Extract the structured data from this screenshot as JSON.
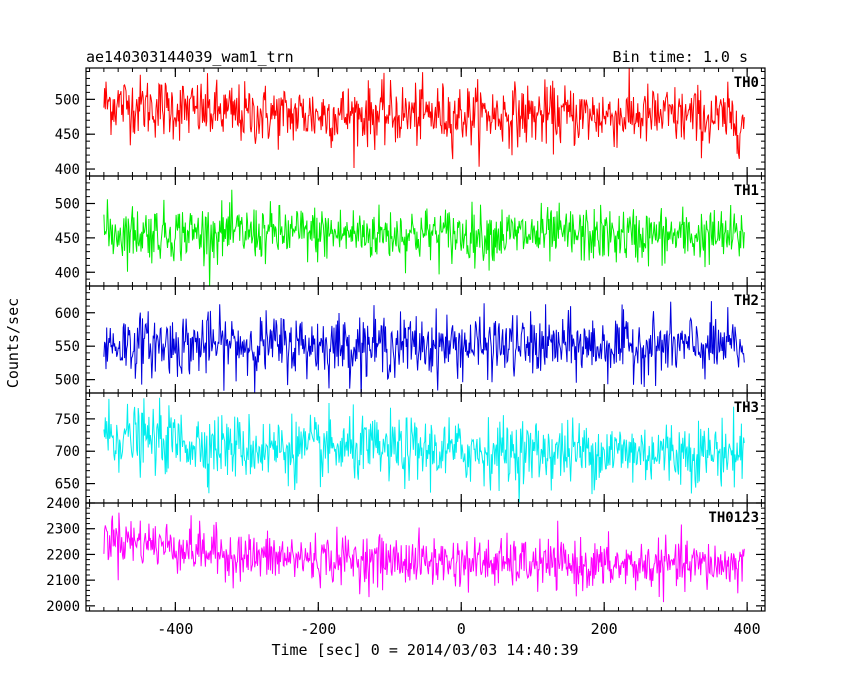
{
  "header": {
    "title": "ae140303144039_wam1_trn",
    "bin_time": "Bin time: 1.0 s"
  },
  "chart_data": {
    "type": "line",
    "xlabel": "Time [sec] 0 = 2014/03/03 14:40:39",
    "ylabel": "Counts/sec",
    "xlim": [
      -525,
      425
    ],
    "x_ticks": [
      -400,
      -200,
      0,
      200,
      400
    ],
    "x_minor_step": 20,
    "data_x_range": [
      -500,
      396
    ],
    "bin_time_s": 1.0,
    "series": [
      {
        "name": "TH0",
        "color": "#ff0000",
        "ylim": [
          390,
          545
        ],
        "y_ticks": [
          400,
          450,
          500
        ],
        "y_minor_step": 10,
        "trend": [
          [
            -500,
            495
          ],
          [
            -300,
            478
          ],
          [
            0,
            478
          ],
          [
            300,
            476
          ],
          [
            396,
            470
          ]
        ],
        "noise_sd": 22
      },
      {
        "name": "TH1",
        "color": "#00ee00",
        "ylim": [
          380,
          540
        ],
        "y_ticks": [
          400,
          450,
          500
        ],
        "y_minor_step": 10,
        "trend": [
          [
            -500,
            458
          ],
          [
            0,
            455
          ],
          [
            396,
            452
          ]
        ],
        "noise_sd": 20
      },
      {
        "name": "TH2",
        "color": "#0000dd",
        "ylim": [
          480,
          640
        ],
        "y_ticks": [
          500,
          550,
          600
        ],
        "y_minor_step": 10,
        "trend": [
          [
            -500,
            553
          ],
          [
            0,
            551
          ],
          [
            396,
            549
          ]
        ],
        "noise_sd": 23
      },
      {
        "name": "TH3",
        "color": "#00eeee",
        "ylim": [
          620,
          790
        ],
        "y_ticks": [
          650,
          700,
          750
        ],
        "y_minor_step": 10,
        "trend": [
          [
            -500,
            725
          ],
          [
            -300,
            705
          ],
          [
            0,
            700
          ],
          [
            396,
            698
          ]
        ],
        "noise_sd": 25
      },
      {
        "name": "TH0123",
        "color": "#ff00ff",
        "ylim": [
          1980,
          2400
        ],
        "y_ticks": [
          2000,
          2100,
          2200,
          2300,
          2400
        ],
        "y_minor_step": 20,
        "trend": [
          [
            -500,
            2270
          ],
          [
            -300,
            2190
          ],
          [
            0,
            2170
          ],
          [
            200,
            2155
          ],
          [
            396,
            2160
          ]
        ],
        "noise_sd": 48
      }
    ]
  }
}
